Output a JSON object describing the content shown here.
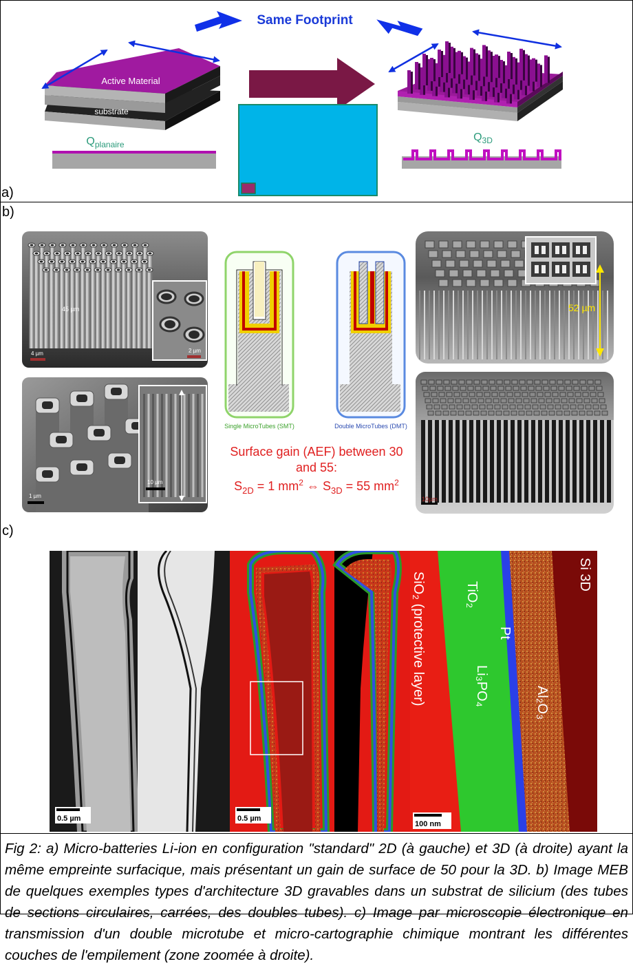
{
  "panel_a": {
    "label": "a)",
    "title": "Same Footprint",
    "active_material": "Active Material",
    "substrate": "substrate",
    "q_planar_main": "Q",
    "q_planar_sub": "planaire",
    "q_3d_main": "Q",
    "q_3d_sub": "3D"
  },
  "panel_b": {
    "label": "b)",
    "sem1_height": "45 µm",
    "sem1_scale": "4 µm",
    "sem1_inset_scale": "2 µm",
    "sem2_scale": "1 µm",
    "sem2_inset_scale": "10 µm",
    "smt_label": "Single MicroTubes (SMT)",
    "dmt_label": "Double MicroTubes (DMT)",
    "sem3_height": "52 µm",
    "sem4_scale": "10µm",
    "gain_line1": "Surface gain (AEF) between 30",
    "gain_line2": "and 55:",
    "s2d_main": "S",
    "s2d_sub": "2D",
    "s2d_rest": " = 1 mm",
    "s2d_sup": "2",
    "equiv": " ⇔ ",
    "s3d_main": "S",
    "s3d_sub": "3D",
    "s3d_rest": " = 55 mm",
    "s3d_sup": "2"
  },
  "panel_c": {
    "label": "c)",
    "scale1": "0.5 µm",
    "scale2": "0.5 µm",
    "scale3": "100 nm",
    "layer_sio2": "SiO₂ (protective layer)",
    "layer_tio2": "TiO₂",
    "layer_li3po4": "Li₃PO₄",
    "layer_pt": "Pt",
    "layer_al2o3": "Al₂O₃",
    "layer_si": "Si 3D"
  },
  "caption": "Fig 2: a) Micro-batteries Li-ion en configuration \"standard\" 2D (à gauche) et 3D (à droite) ayant la même empreinte surfacique, mais présentant un gain de surface de 50 pour la 3D. b) Image MEB de quelques exemples types d'architecture 3D gravables dans un substrat de silicium (des tubes de sections circulaires, carrées, des doubles tubes). c) Image par microscopie électronique en transmission d'un double microtube et micro-cartographie chimique montrant les différentes couches de l'empilement (zone zoomée à droite)."
}
